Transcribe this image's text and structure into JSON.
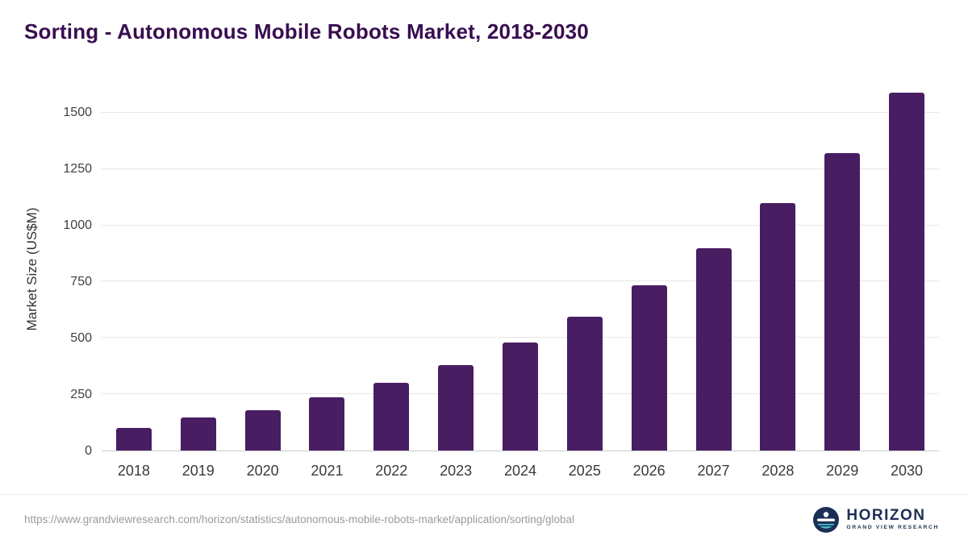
{
  "chart_data": {
    "type": "bar",
    "title": "Sorting - Autonomous Mobile Robots Market, 2018-2030",
    "ylabel": "Market Size (US$M)",
    "xlabel": "",
    "categories": [
      "2018",
      "2019",
      "2020",
      "2021",
      "2022",
      "2023",
      "2024",
      "2025",
      "2026",
      "2027",
      "2028",
      "2029",
      "2030"
    ],
    "values": [
      100,
      145,
      180,
      235,
      300,
      380,
      480,
      595,
      735,
      900,
      1100,
      1320,
      1590
    ],
    "yticks": [
      0,
      250,
      500,
      750,
      1000,
      1250,
      1500
    ],
    "ylim": [
      0,
      1614
    ],
    "grid": true,
    "legend": "none",
    "bar_color": "#481d62",
    "title_color": "#380d51"
  },
  "footer": {
    "url": "https://www.grandviewresearch.com/horizon/statistics/autonomous-mobile-robots-market/application/sorting/global",
    "logo": {
      "name": "HORIZON",
      "subtitle": "GRAND VIEW RESEARCH",
      "icon": "horizon-circle-logo",
      "navy": "#1b2f55",
      "teal": "#4ec3d6"
    }
  }
}
